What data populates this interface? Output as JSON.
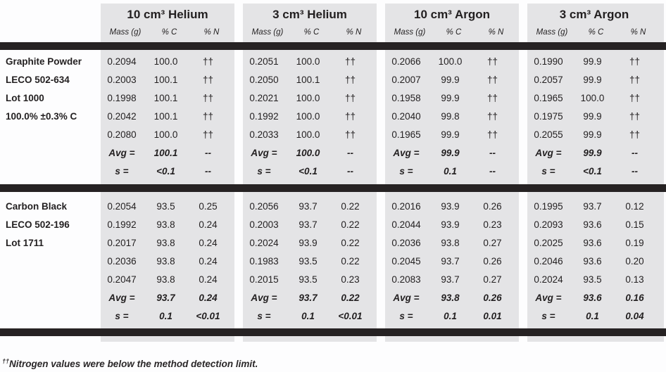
{
  "header": {
    "groups": [
      {
        "title": "10 cm³ Helium",
        "cols": [
          "Mass (g)",
          "% C",
          "% N"
        ]
      },
      {
        "title": "3 cm³ Helium",
        "cols": [
          "Mass (g)",
          "% C",
          "% N"
        ]
      },
      {
        "title": "10 cm³ Argon",
        "cols": [
          "Mass (g)",
          "% C",
          "% N"
        ]
      },
      {
        "title": "3 cm³ Argon",
        "cols": [
          "Mass (g)",
          "% C",
          "% N"
        ]
      }
    ]
  },
  "blocks": [
    {
      "name": "graphite-powder",
      "rows": [
        {
          "label": "Graphite Powder",
          "summary": false,
          "cells": [
            [
              "0.2094",
              "100.0",
              "††"
            ],
            [
              "0.2051",
              "100.0",
              "††"
            ],
            [
              "0.2066",
              "100.0",
              "††"
            ],
            [
              "0.1990",
              "99.9",
              "††"
            ]
          ]
        },
        {
          "label": "LECO 502-634",
          "summary": false,
          "cells": [
            [
              "0.2003",
              "100.1",
              "††"
            ],
            [
              "0.2050",
              "100.1",
              "††"
            ],
            [
              "0.2007",
              "99.9",
              "††"
            ],
            [
              "0.2057",
              "99.9",
              "††"
            ]
          ]
        },
        {
          "label": "Lot 1000",
          "summary": false,
          "cells": [
            [
              "0.1998",
              "100.1",
              "††"
            ],
            [
              "0.2021",
              "100.0",
              "††"
            ],
            [
              "0.1958",
              "99.9",
              "††"
            ],
            [
              "0.1965",
              "100.0",
              "††"
            ]
          ]
        },
        {
          "label": "100.0% ±0.3% C",
          "summary": false,
          "cells": [
            [
              "0.2042",
              "100.1",
              "††"
            ],
            [
              "0.1992",
              "100.0",
              "††"
            ],
            [
              "0.2040",
              "99.8",
              "††"
            ],
            [
              "0.1975",
              "99.9",
              "††"
            ]
          ]
        },
        {
          "label": "",
          "summary": false,
          "cells": [
            [
              "0.2080",
              "100.0",
              "††"
            ],
            [
              "0.2033",
              "100.0",
              "††"
            ],
            [
              "0.1965",
              "99.9",
              "††"
            ],
            [
              "0.2055",
              "99.9",
              "††"
            ]
          ]
        },
        {
          "label": "",
          "summary": true,
          "cells": [
            [
              "Avg =",
              "100.1",
              "--"
            ],
            [
              "Avg =",
              "100.0",
              "--"
            ],
            [
              "Avg =",
              "99.9",
              "--"
            ],
            [
              "Avg =",
              "99.9",
              "--"
            ]
          ]
        },
        {
          "label": "",
          "summary": true,
          "cells": [
            [
              "s =",
              "<0.1",
              "--"
            ],
            [
              "s =",
              "<0.1",
              "--"
            ],
            [
              "s =",
              "0.1",
              "--"
            ],
            [
              "s =",
              "<0.1",
              "--"
            ]
          ]
        }
      ]
    },
    {
      "name": "carbon-black",
      "rows": [
        {
          "label": "Carbon Black",
          "summary": false,
          "cells": [
            [
              "0.2054",
              "93.5",
              "0.25"
            ],
            [
              "0.2056",
              "93.7",
              "0.22"
            ],
            [
              "0.2016",
              "93.9",
              "0.26"
            ],
            [
              "0.1995",
              "93.7",
              "0.12"
            ]
          ]
        },
        {
          "label": "LECO 502-196",
          "summary": false,
          "cells": [
            [
              "0.1992",
              "93.8",
              "0.24"
            ],
            [
              "0.2003",
              "93.7",
              "0.22"
            ],
            [
              "0.2044",
              "93.9",
              "0.23"
            ],
            [
              "0.2093",
              "93.6",
              "0.15"
            ]
          ]
        },
        {
          "label": "Lot 1711",
          "summary": false,
          "cells": [
            [
              "0.2017",
              "93.8",
              "0.24"
            ],
            [
              "0.2024",
              "93.9",
              "0.22"
            ],
            [
              "0.2036",
              "93.8",
              "0.27"
            ],
            [
              "0.2025",
              "93.6",
              "0.19"
            ]
          ]
        },
        {
          "label": "",
          "summary": false,
          "cells": [
            [
              "0.2036",
              "93.8",
              "0.24"
            ],
            [
              "0.1983",
              "93.5",
              "0.22"
            ],
            [
              "0.2045",
              "93.7",
              "0.26"
            ],
            [
              "0.2046",
              "93.6",
              "0.20"
            ]
          ]
        },
        {
          "label": "",
          "summary": false,
          "cells": [
            [
              "0.2047",
              "93.8",
              "0.24"
            ],
            [
              "0.2015",
              "93.5",
              "0.23"
            ],
            [
              "0.2083",
              "93.7",
              "0.27"
            ],
            [
              "0.2024",
              "93.5",
              "0.13"
            ]
          ]
        },
        {
          "label": "",
          "summary": true,
          "cells": [
            [
              "Avg =",
              "93.7",
              "0.24"
            ],
            [
              "Avg =",
              "93.7",
              "0.22"
            ],
            [
              "Avg =",
              "93.8",
              "0.26"
            ],
            [
              "Avg =",
              "93.6",
              "0.16"
            ]
          ]
        },
        {
          "label": "",
          "summary": true,
          "cells": [
            [
              "s =",
              "0.1",
              "<0.01"
            ],
            [
              "s =",
              "0.1",
              "<0.01"
            ],
            [
              "s =",
              "0.1",
              "0.01"
            ],
            [
              "s =",
              "0.1",
              "0.04"
            ]
          ]
        }
      ]
    }
  ],
  "footnote": {
    "marker": "††",
    "text": "Nitrogen values were below the method detection limit."
  },
  "colors": {
    "band_gray": "#e4e4e6",
    "bar_black": "#262223",
    "text": "#221f20"
  }
}
